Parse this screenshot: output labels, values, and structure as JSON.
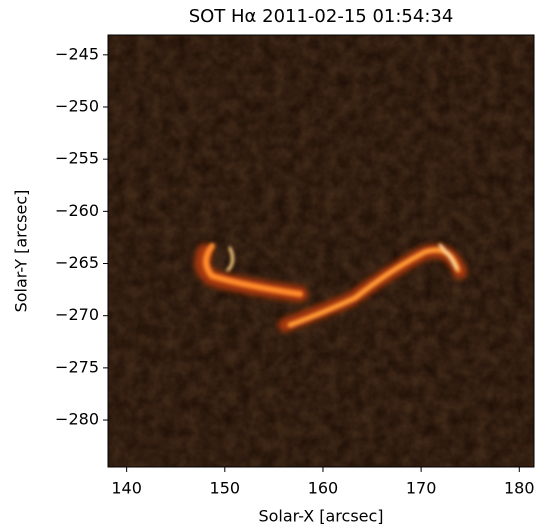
{
  "chart_data": {
    "type": "image",
    "title": "SOT Hα 2011-02-15 01:54:34",
    "x_label": "Solar-X [arcsec]",
    "y_label": "Solar-Y [arcsec]",
    "xlim": [
      138.1,
      181.5
    ],
    "ylim": [
      -284.5,
      -243.1
    ],
    "xticks": [
      140,
      150,
      160,
      170,
      180
    ],
    "yticks": [
      {
        "value": -245,
        "label": "−245"
      },
      {
        "value": -250,
        "label": "−250"
      },
      {
        "value": -255,
        "label": "−255"
      },
      {
        "value": -260,
        "label": "−260"
      },
      {
        "value": -265,
        "label": "−265"
      },
      {
        "value": -270,
        "label": "−270"
      },
      {
        "value": -275,
        "label": "−275"
      },
      {
        "value": -280,
        "label": "−280"
      }
    ],
    "colormap": "sdoaia304"
  }
}
